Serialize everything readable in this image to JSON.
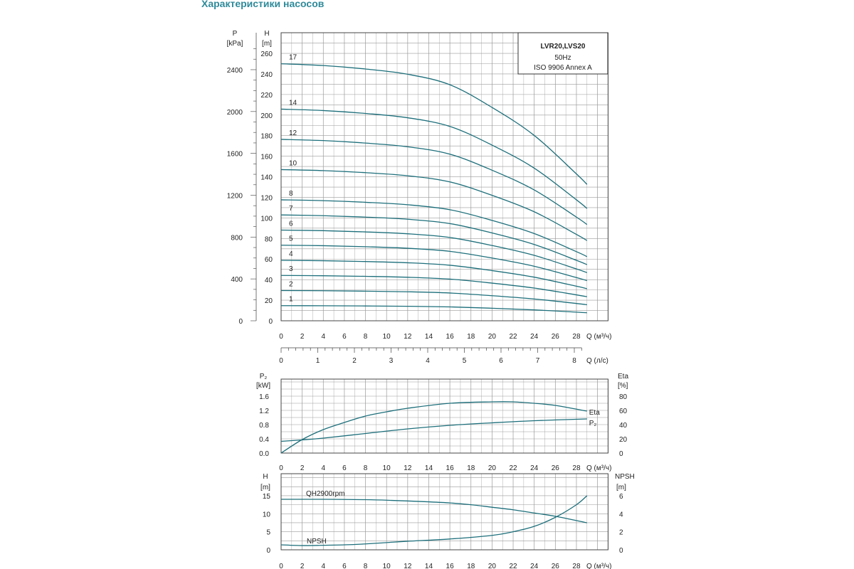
{
  "page_title": "Характеристики насосов",
  "chart_data": [
    {
      "type": "line",
      "title": "LVR20,LVS20",
      "subtitle": "50Hz",
      "note": "ISO 9906 Annex A",
      "xlabel": "Q (м³/ч)",
      "xlabel2": "Q (л/с)",
      "ylabel": "H",
      "yunit": "[m]",
      "ylabel2": "P",
      "yunit2": "[kPa]",
      "xlim": [
        0,
        31
      ],
      "ylim": [
        0,
        280
      ],
      "y2ticks": [
        0,
        400,
        800,
        1200,
        1600,
        2000,
        2400
      ],
      "xticks": [
        0,
        2,
        4,
        6,
        8,
        10,
        12,
        14,
        16,
        18,
        20,
        22,
        24,
        26,
        28
      ],
      "yticks": [
        0,
        20,
        40,
        60,
        80,
        100,
        120,
        140,
        160,
        180,
        200,
        220,
        240,
        260
      ],
      "x2ticks": [
        0,
        1,
        2,
        3,
        4,
        5,
        6,
        7,
        8
      ],
      "x": [
        0,
        4,
        8,
        12,
        16,
        20,
        24,
        28,
        29
      ],
      "series": [
        {
          "name": "1",
          "values": [
            14.7,
            14.6,
            14.4,
            14.1,
            13.5,
            12.2,
            10.6,
            8.4,
            7.8
          ]
        },
        {
          "name": "2",
          "values": [
            29.4,
            29.2,
            28.8,
            28.2,
            27,
            24.4,
            21.2,
            16.8,
            15.6
          ]
        },
        {
          "name": "3",
          "values": [
            44.1,
            43.8,
            43.2,
            42.3,
            40.5,
            36.6,
            31.8,
            25.2,
            23.4
          ]
        },
        {
          "name": "4",
          "values": [
            58.8,
            58.4,
            57.6,
            56.4,
            54,
            48.8,
            42.4,
            33.6,
            31.2
          ]
        },
        {
          "name": "5",
          "values": [
            73.5,
            73,
            72,
            70.5,
            67.5,
            61,
            53,
            42,
            39
          ]
        },
        {
          "name": "6",
          "values": [
            88.2,
            87.6,
            86.4,
            84.6,
            81,
            73.2,
            63.6,
            50.4,
            46.8
          ]
        },
        {
          "name": "7",
          "values": [
            102.9,
            102.2,
            100.8,
            98.7,
            94.5,
            85.4,
            74.2,
            58.8,
            54.6
          ]
        },
        {
          "name": "8",
          "values": [
            117.6,
            116.8,
            115.2,
            112.8,
            108,
            97.6,
            84.8,
            67.2,
            62.4
          ]
        },
        {
          "name": "10",
          "values": [
            147,
            146,
            144,
            141,
            135,
            122,
            106,
            84,
            78
          ]
        },
        {
          "name": "12",
          "values": [
            176.4,
            175.2,
            172.8,
            169.2,
            162,
            146.4,
            127.2,
            100.8,
            93.6
          ]
        },
        {
          "name": "14",
          "values": [
            205.8,
            204.4,
            201.6,
            197.4,
            189,
            170.8,
            148.4,
            117.6,
            109.2
          ]
        },
        {
          "name": "17",
          "values": [
            249.9,
            248.2,
            244.8,
            239.7,
            229.5,
            207.4,
            180.2,
            142.8,
            132.6
          ]
        }
      ]
    },
    {
      "type": "line",
      "xlabel": "Q (м³/ч)",
      "ylabel": "P₂",
      "yunit": "[kW]",
      "ylabel2": "Eta",
      "yunit2": "[%]",
      "xlim": [
        0,
        31
      ],
      "ylim": [
        0,
        2.08
      ],
      "yticks": [
        "0.0",
        "0.4",
        "0.8",
        "1.2",
        "1.6"
      ],
      "y2ticks": [
        0,
        20,
        40,
        60,
        80
      ],
      "xticks": [
        0,
        2,
        4,
        6,
        8,
        10,
        12,
        14,
        16,
        18,
        20,
        22,
        24,
        26,
        28
      ],
      "series": [
        {
          "name": "Eta",
          "axis": "right",
          "x": [
            0,
            2,
            4,
            6,
            8,
            10,
            12,
            16,
            20,
            22,
            24,
            26,
            29
          ],
          "values": [
            0,
            19,
            33,
            43,
            52,
            58,
            63,
            70,
            72,
            72,
            70,
            67,
            59
          ]
        },
        {
          "name": "P₂",
          "axis": "left",
          "x": [
            0,
            2,
            4,
            8,
            12,
            16,
            20,
            24,
            29
          ],
          "values": [
            0.33,
            0.37,
            0.42,
            0.55,
            0.68,
            0.78,
            0.85,
            0.91,
            0.96
          ]
        }
      ]
    },
    {
      "type": "line",
      "xlabel": "Q (м³/ч)",
      "ylabel": "H",
      "yunit": "[m]",
      "ylabel2": "NPSH",
      "yunit2": "[m]",
      "xlim": [
        0,
        31
      ],
      "ylim": [
        0,
        21
      ],
      "yticks": [
        0,
        5,
        10,
        15
      ],
      "y2ticks": [
        0,
        2,
        4,
        6
      ],
      "xticks": [
        0,
        2,
        4,
        6,
        8,
        10,
        12,
        14,
        16,
        18,
        20,
        22,
        24,
        26,
        28
      ],
      "series": [
        {
          "name": "QH2900rpm",
          "axis": "left",
          "x": [
            0,
            4,
            8,
            10.5,
            14,
            16,
            18,
            20,
            22,
            24,
            26,
            29
          ],
          "values": [
            14,
            14,
            13.9,
            13.7,
            13.3,
            13,
            12.5,
            11.8,
            11.1,
            10.2,
            9.3,
            7.5
          ]
        },
        {
          "name": "NPSH",
          "axis": "right",
          "x": [
            0,
            2,
            4,
            6,
            8,
            10,
            12,
            16,
            20,
            22,
            24,
            26,
            28,
            29
          ],
          "values": [
            0.55,
            0.47,
            0.5,
            0.55,
            0.65,
            0.8,
            0.95,
            1.2,
            1.6,
            2.0,
            2.6,
            3.6,
            5.0,
            6.0
          ]
        }
      ]
    }
  ],
  "colors": {
    "curve": "#1d6f7b",
    "curve_light": "#5fa3ad",
    "grid": "#9a9a9a",
    "title": "#2f8a9a"
  }
}
